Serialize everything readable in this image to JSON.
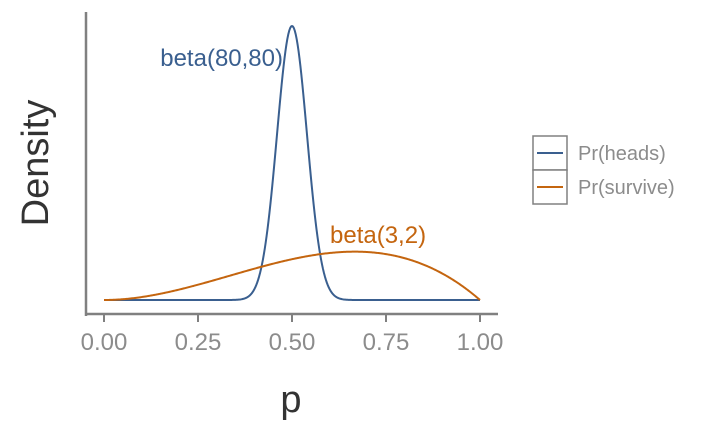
{
  "chart_data": {
    "type": "line",
    "title": "",
    "xlabel": "p",
    "ylabel": "Density",
    "xlim": [
      0,
      1
    ],
    "x_ticks": [
      "0.00",
      "0.25",
      "0.50",
      "0.75",
      "1.00"
    ],
    "y_ticks_shown": false,
    "grid": false,
    "legend_placement": "right",
    "series": [
      {
        "name": "Pr(heads)",
        "distribution": "beta",
        "alpha": 80,
        "beta": 80,
        "color": "#3a5f8f"
      },
      {
        "name": "Pr(survive)",
        "distribution": "beta",
        "alpha": 3,
        "beta": 2,
        "color": "#c4650f"
      }
    ],
    "annotations": [
      {
        "text": "beta(80,80)",
        "series": "Pr(heads)",
        "color": "#3a5f8f"
      },
      {
        "text": "beta(3,2)",
        "series": "Pr(survive)",
        "color": "#c4650f"
      }
    ]
  }
}
